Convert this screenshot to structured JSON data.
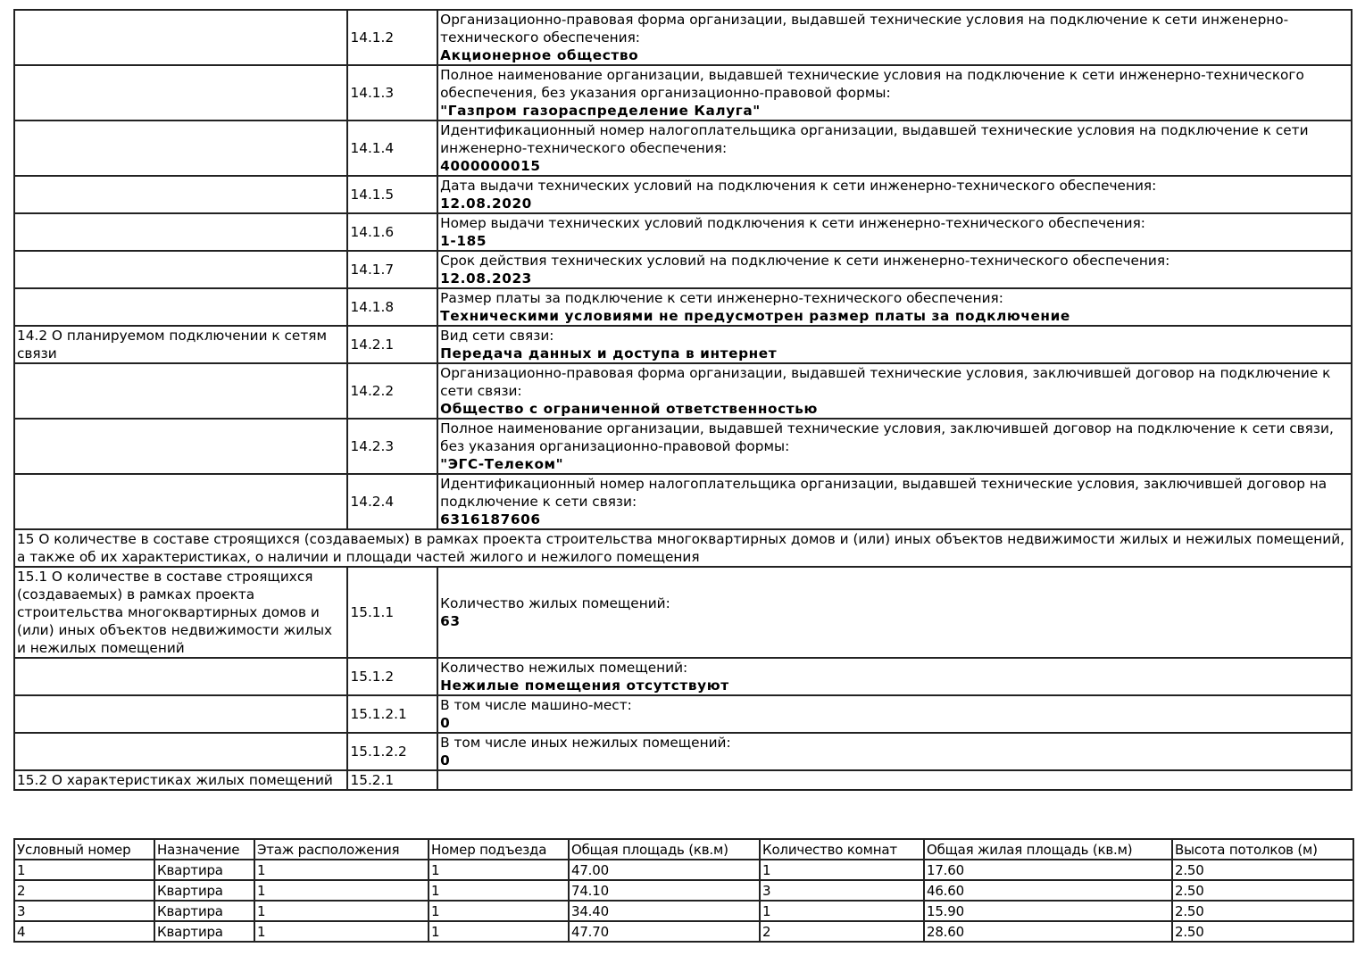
{
  "rows": [
    {
      "section": "",
      "num": "14.1.2",
      "label": "Организационно-правовая форма организации, выдавшей технические условия на подключение к сети инженерно-технического обеспечения:",
      "value": "Акционерное общество",
      "h": 61
    },
    {
      "section": "",
      "num": "14.1.3",
      "label": "Полное наименование организации, выдавшей технические условия на подключение к сети инженерно-технического обеспечения, без указания организационно-правовой формы:",
      "value": "\"Газпром газораспределение Калуга\"",
      "h": 62
    },
    {
      "section": "",
      "num": "14.1.4",
      "label": "Идентификационный номер налогоплательщика организации, выдавшей технические условия на подключение к сети инженерно-технического обеспечения:",
      "value": "4000000015",
      "h": 61
    },
    {
      "section": "",
      "num": "14.1.5",
      "label": "Дата выдачи технических условий на подключения к сети инженерно-технического обеспечения:",
      "value": "12.08.2020",
      "h": 41
    },
    {
      "section": "",
      "num": "14.1.6",
      "label": "Номер выдачи технических условий подключения к сети инженерно-технического обеспечения:",
      "value": "1-185",
      "h": 41
    },
    {
      "section": "",
      "num": "14.1.7",
      "label": "Срок действия технических условий на подключение к сети инженерно-технического обеспечения:",
      "value": "12.08.2023",
      "h": 41
    },
    {
      "section": "",
      "num": "14.1.8",
      "label": "Размер платы за подключение к сети инженерно-технического обеспечения:",
      "value": "Техническими условиями не предусмотрен размер платы за подключение",
      "h": 41
    },
    {
      "section": "14.2 О планируемом подключении к сетям связи",
      "num": "14.2.1",
      "label": "Вид сети связи:",
      "value": "Передача данных и доступа в интернет",
      "h": 41
    },
    {
      "section": "",
      "num": "14.2.2",
      "label": "Организационно-правовая форма организации, выдавшей технические условия, заключившей договор на подключение к сети связи:",
      "value": "Общество с ограниченной ответственностью",
      "h": 62
    },
    {
      "section": "",
      "num": "14.2.3",
      "label": "Полное наименование организации, выдавшей технические условия, заключившей договор на подключение к сети связи, без указания организационно-правовой формы:",
      "value": "\"ЭГС-Телеком\"",
      "h": 61
    },
    {
      "section": "",
      "num": "14.2.4",
      "label": "Идентификационный номер налогоплательщика организации, выдавшей технические условия, заключившей договор на подключение к сети связи:",
      "value": "6316187606",
      "h": 61
    },
    {
      "full": "15 О количестве в составе строящихся (создаваемых) в рамках проекта строительства многоквартирных домов и (или) иных объектов недвижимости жилых и нежилых помещений, а также об их характеристиках, о наличии и площади частей жилого и нежилого помещения",
      "h": 42
    },
    {
      "section": "15.1 О количестве в составе строящихся (создаваемых) в рамках проекта строительства многоквартирных домов и (или) иных объектов недвижимости жилых и нежилых помещений",
      "num": "15.1.1",
      "label": "Количество жилых помещений:",
      "value": "63",
      "h": 102
    },
    {
      "section": "",
      "num": "15.1.2",
      "label": "Количество нежилых помещений:",
      "value": "Нежилые помещения отсутствуют",
      "h": 41
    },
    {
      "section": "",
      "num": "15.1.2.1",
      "label": "В том числе машино-мест:",
      "value": "0",
      "h": 41
    },
    {
      "section": "",
      "num": "15.1.2.2",
      "label": "В том числе иных нежилых помещений:",
      "value": "0",
      "h": 41
    },
    {
      "section": "15.2 О характеристиках жилых помещений",
      "num": "15.2.1",
      "label": "",
      "value": "",
      "h": 21
    }
  ],
  "units_table": {
    "headers": [
      "Условный номер",
      "Назначение",
      "Этаж расположения",
      "Номер подъезда",
      "Общая площадь (кв.м)",
      "Количество комнат",
      "Общая жилая площадь (кв.м)",
      "Высота потолков (м)"
    ],
    "rows": [
      [
        "1",
        "Квартира",
        "1",
        "1",
        "47.00",
        "1",
        "17.60",
        "2.50"
      ],
      [
        "2",
        "Квартира",
        "1",
        "1",
        "74.10",
        "3",
        "46.60",
        "2.50"
      ],
      [
        "3",
        "Квартира",
        "1",
        "1",
        "34.40",
        "1",
        "15.90",
        "2.50"
      ],
      [
        "4",
        "Квартира",
        "1",
        "1",
        "47.70",
        "2",
        "28.60",
        "2.50"
      ]
    ]
  }
}
